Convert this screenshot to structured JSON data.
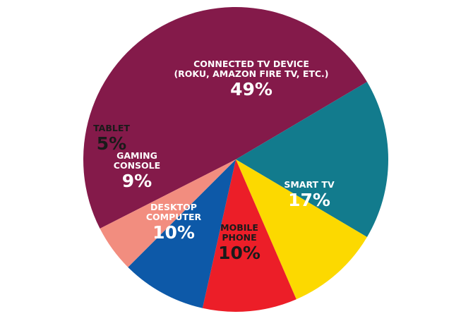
{
  "chart_data": {
    "type": "pie",
    "title": "",
    "slices": [
      {
        "label_lines": [
          "CONNECTED TV DEVICE",
          "(ROKU, AMAZON FIRE TV, ETC.)"
        ],
        "value": 49,
        "value_label": "49%",
        "color": "#841a4a",
        "text_color": "#ffffff"
      },
      {
        "label_lines": [
          "SMART TV"
        ],
        "value": 17,
        "value_label": "17%",
        "color": "#127b8d",
        "text_color": "#ffffff"
      },
      {
        "label_lines": [
          "MOBILE",
          "PHONE"
        ],
        "value": 10,
        "value_label": "10%",
        "color": "#fcd900",
        "text_color": "#1a1a1a"
      },
      {
        "label_lines": [
          "DESKTOP",
          "COMPUTER"
        ],
        "value": 10,
        "value_label": "10%",
        "color": "#ec1e28",
        "text_color": "#ffffff"
      },
      {
        "label_lines": [
          "GAMING",
          "CONSOLE"
        ],
        "value": 9,
        "value_label": "9%",
        "color": "#0d59a8",
        "text_color": "#ffffff"
      },
      {
        "label_lines": [
          "TABLET"
        ],
        "value": 5,
        "value_label": "5%",
        "color": "#f28d7f",
        "text_color": "#1a1a1a"
      }
    ]
  }
}
